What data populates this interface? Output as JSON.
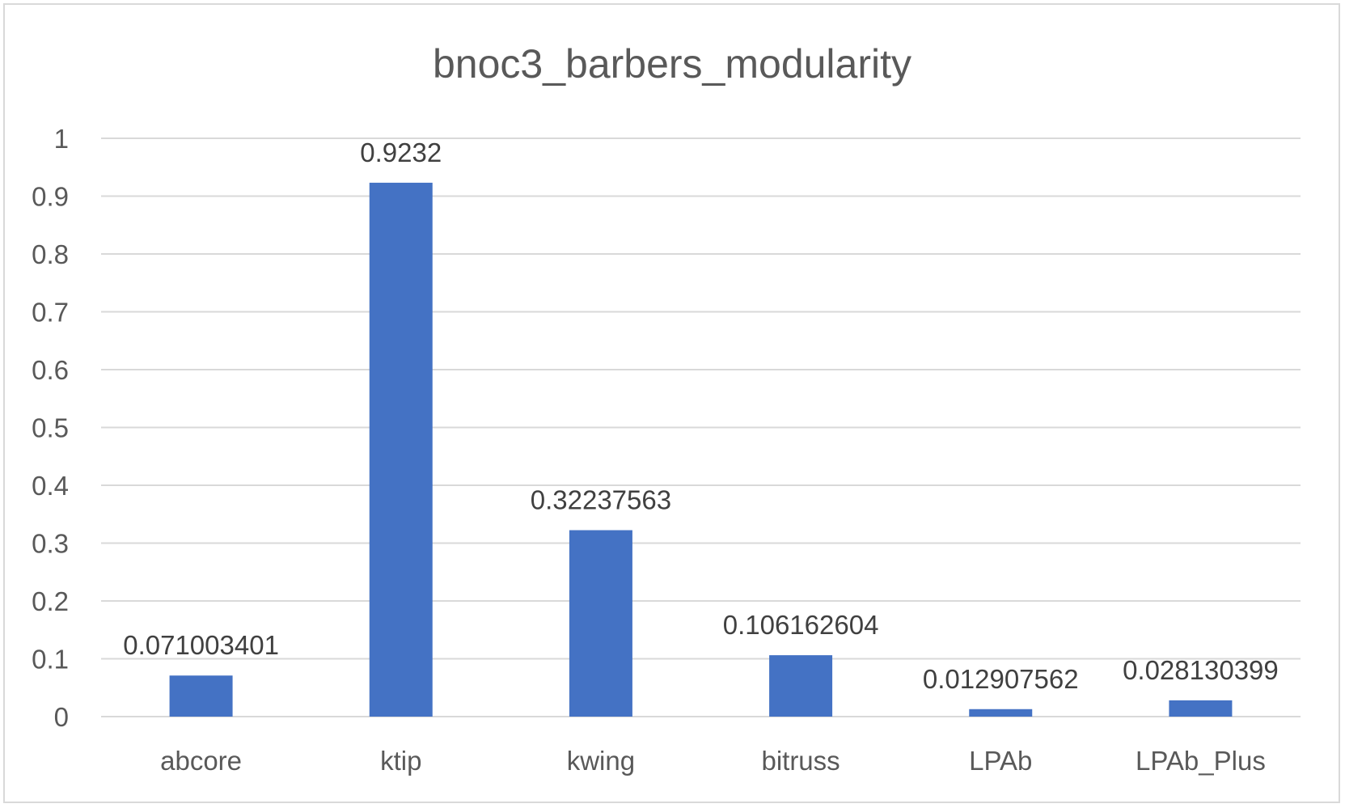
{
  "chart_data": {
    "type": "bar",
    "title": "bnoc3_barbers_modularity",
    "categories": [
      "abcore",
      "ktip",
      "kwing",
      "bitruss",
      "LPAb",
      "LPAb_Plus"
    ],
    "values": [
      0.071003401,
      0.9232,
      0.32237563,
      0.106162604,
      0.012907562,
      0.028130399
    ],
    "value_labels": [
      "0.071003401",
      "0.9232",
      "0.32237563",
      "0.106162604",
      "0.012907562",
      "0.028130399"
    ],
    "ylim": [
      0,
      1
    ],
    "yticks": [
      "0",
      "0.1",
      "0.2",
      "0.3",
      "0.4",
      "0.5",
      "0.6",
      "0.7",
      "0.8",
      "0.9",
      "1"
    ],
    "grid": true,
    "legend": "none",
    "colors": {
      "bar": "#4472c4",
      "grid": "#d9d9d9",
      "text": "#595959"
    }
  }
}
